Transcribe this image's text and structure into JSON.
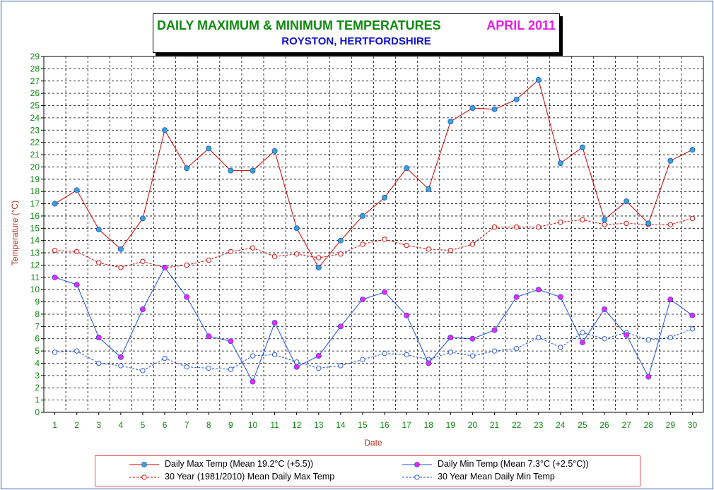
{
  "title": "DAILY MAXIMUM &  MINIMUM  TEMPERATURES",
  "month": "APRIL 2011",
  "subtitle": "ROYSTON, HERTFORDSHIRE",
  "colors": {
    "frame": "#2a5db0",
    "title_green": "#0f8a0f",
    "title_magenta": "#e61ee6",
    "subtitle_blue": "#1010d0",
    "max_line": "#cc0000",
    "min_line": "#1f4fd6",
    "marker_cyan": "#3aa6c8",
    "marker_magenta": "#ff22ff",
    "axis_label": "#b03020",
    "tick_label_green": "#0f8a0f"
  },
  "chart_data": {
    "type": "line",
    "title": "DAILY MAXIMUM &  MINIMUM  TEMPERATURES",
    "xlabel": "Date",
    "ylabel": "Temperature (°C)",
    "ylim": [
      0,
      29
    ],
    "grid": true,
    "legend_position": "bottom",
    "x": [
      1,
      2,
      3,
      4,
      5,
      6,
      7,
      8,
      9,
      10,
      11,
      12,
      13,
      14,
      15,
      16,
      17,
      18,
      19,
      20,
      21,
      22,
      23,
      24,
      25,
      26,
      27,
      28,
      29,
      30
    ],
    "series": [
      {
        "name": "Daily Max Temp (Mean 19.2°C (+5.5))",
        "style": "solid",
        "color": "#cc0000",
        "marker": "filled-cyan",
        "values": [
          17.0,
          18.1,
          14.9,
          13.3,
          15.8,
          23.0,
          19.9,
          21.5,
          19.7,
          19.7,
          21.3,
          15.0,
          11.8,
          14.0,
          16.0,
          17.5,
          19.9,
          18.2,
          23.7,
          24.8,
          24.7,
          25.5,
          27.1,
          20.3,
          21.6,
          15.7,
          17.2,
          15.4,
          20.5,
          21.4
        ]
      },
      {
        "name": "Daily Min Temp (Mean 7.3°C (+2.5°C))",
        "style": "solid",
        "color": "#1f4fd6",
        "marker": "filled-magenta",
        "values": [
          11.0,
          10.4,
          6.1,
          4.5,
          8.4,
          11.8,
          9.4,
          6.2,
          5.8,
          2.5,
          7.3,
          3.7,
          4.6,
          7.0,
          9.2,
          9.8,
          7.9,
          4.0,
          6.1,
          6.0,
          6.7,
          9.4,
          10.0,
          9.4,
          5.7,
          8.4,
          6.3,
          2.9,
          9.2,
          7.9
        ]
      },
      {
        "name": "30 Year (1981/2010) Mean Daily Max Temp",
        "style": "dashed",
        "color": "#cc0000",
        "marker": "open",
        "values": [
          13.2,
          13.1,
          12.2,
          11.8,
          12.3,
          11.8,
          12.0,
          12.4,
          13.1,
          13.4,
          12.7,
          12.9,
          12.6,
          12.9,
          13.7,
          14.1,
          13.6,
          13.3,
          13.2,
          13.7,
          15.1,
          15.1,
          15.1,
          15.5,
          15.7,
          15.3,
          15.4,
          15.3,
          15.3,
          15.8
        ]
      },
      {
        "name": "30 Year Mean Daily Min Temp",
        "style": "dashed",
        "color": "#1f4fd6",
        "marker": "open",
        "values": [
          4.9,
          5.0,
          4.0,
          3.8,
          3.4,
          4.4,
          3.7,
          3.6,
          3.5,
          4.6,
          4.7,
          4.1,
          3.6,
          3.8,
          4.3,
          4.8,
          4.7,
          4.3,
          4.9,
          4.6,
          5.0,
          5.2,
          6.1,
          5.3,
          6.5,
          6.0,
          6.5,
          5.9,
          6.1,
          6.8
        ]
      }
    ]
  }
}
